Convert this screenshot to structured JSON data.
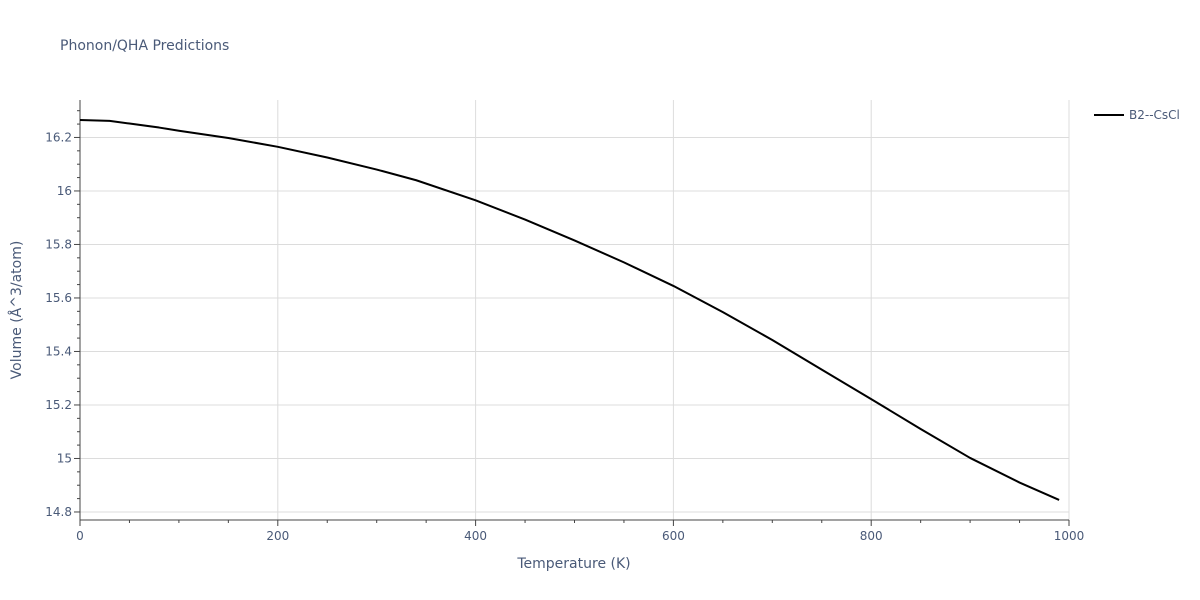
{
  "chart_data": {
    "type": "line",
    "title": "Phonon/QHA Predictions",
    "xlabel": "Temperature (K)",
    "ylabel": "Volume (Å^3/atom)",
    "xlim": [
      0,
      1000
    ],
    "ylim": [
      14.77,
      16.34
    ],
    "grid": true,
    "legend_position": "top-right",
    "x_ticks": [
      0,
      200,
      400,
      600,
      800,
      1000
    ],
    "x_tick_labels": [
      "0",
      "200",
      "400",
      "600",
      "800",
      "1000"
    ],
    "y_ticks": [
      14.8,
      15,
      15.2,
      15.4,
      15.6,
      15.8,
      16,
      16.2
    ],
    "y_tick_labels": [
      "14.8",
      "15",
      "15.2",
      "15.4",
      "15.6",
      "15.8",
      "16",
      "16.2"
    ],
    "series": [
      {
        "name": "B2--CsCl",
        "color": "#000000",
        "x": [
          0,
          30,
          50,
          80,
          100,
          150,
          200,
          250,
          300,
          340,
          400,
          450,
          500,
          550,
          600,
          650,
          700,
          750,
          800,
          850,
          900,
          950,
          990
        ],
        "y": [
          16.265,
          16.262,
          16.252,
          16.237,
          16.225,
          16.198,
          16.165,
          16.125,
          16.08,
          16.04,
          15.965,
          15.893,
          15.815,
          15.733,
          15.645,
          15.547,
          15.443,
          15.332,
          15.222,
          15.11,
          15.002,
          14.91,
          14.845
        ]
      }
    ]
  }
}
